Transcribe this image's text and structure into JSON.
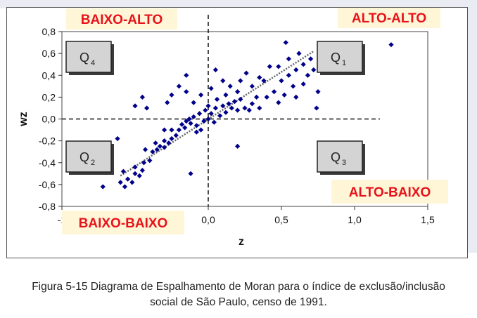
{
  "caption": {
    "line1": "Figura 5-15 Diagrama de Espalhamento de Moran para o índice de exclusão/inclusão",
    "line2": "social de São Paulo, censo de 1991."
  },
  "chart_data": {
    "type": "scatter",
    "xlabel": "z",
    "ylabel": "wz",
    "xlim": [
      -1,
      1.5
    ],
    "ylim": [
      -0.8,
      0.8
    ],
    "x_ticks": [
      "-1",
      "0,0",
      "0,5",
      "1,0",
      "1,5"
    ],
    "x_tick_values": [
      -1.0,
      0.0,
      0.5,
      1.0,
      1.5
    ],
    "y_ticks": [
      "0,8",
      "0,6",
      "0,4",
      "0,2",
      "0,0",
      "-0,2",
      "-0,4",
      "-0,6",
      "-0,8"
    ],
    "y_tick_values": [
      0.8,
      0.6,
      0.4,
      0.2,
      0.0,
      -0.2,
      -0.4,
      -0.6,
      -0.8
    ],
    "grid": false,
    "trendline": {
      "style": "dotted",
      "x": [
        -0.6,
        0.72
      ],
      "y": [
        -0.52,
        0.62
      ]
    },
    "quadrant_labels": [
      {
        "text": "BAIXO-ALTO",
        "color": "#e8121a"
      },
      {
        "text": "ALTO-ALTO",
        "color": "#e8121a"
      },
      {
        "text": "ALTO-BAIXO",
        "color": "#e8121a"
      },
      {
        "text": "BAIXO-BAIXO",
        "color": "#e8121a"
      }
    ],
    "quadrant_boxes": [
      {
        "main": "Q",
        "sub": "4"
      },
      {
        "main": "Q",
        "sub": "1"
      },
      {
        "main": "Q",
        "sub": "2"
      },
      {
        "main": "Q",
        "sub": "3"
      }
    ],
    "marker_color": "#00008b",
    "label_bg": "#fff6d8",
    "points": [
      [
        -0.72,
        -0.62
      ],
      [
        -0.6,
        -0.58
      ],
      [
        -0.57,
        -0.62
      ],
      [
        -0.55,
        -0.55
      ],
      [
        -0.52,
        -0.58
      ],
      [
        -0.5,
        -0.5
      ],
      [
        -0.47,
        -0.52
      ],
      [
        -0.5,
        -0.44
      ],
      [
        -0.58,
        -0.48
      ],
      [
        -0.45,
        -0.47
      ],
      [
        -0.44,
        -0.4
      ],
      [
        -0.4,
        -0.38
      ],
      [
        -0.43,
        -0.28
      ],
      [
        -0.38,
        -0.3
      ],
      [
        -0.35,
        -0.28
      ],
      [
        -0.33,
        -0.25
      ],
      [
        -0.36,
        -0.22
      ],
      [
        -0.3,
        -0.26
      ],
      [
        -0.3,
        -0.2
      ],
      [
        -0.27,
        -0.22
      ],
      [
        -0.25,
        -0.18
      ],
      [
        -0.25,
        -0.1
      ],
      [
        -0.22,
        -0.15
      ],
      [
        -0.2,
        -0.1
      ],
      [
        -0.18,
        -0.05
      ],
      [
        -0.16,
        -0.08
      ],
      [
        -0.15,
        -0.02
      ],
      [
        -0.13,
        0.0
      ],
      [
        -0.12,
        -0.04
      ],
      [
        -0.1,
        0.02
      ],
      [
        -0.08,
        -0.06
      ],
      [
        -0.06,
        0.05
      ],
      [
        -0.05,
        -0.1
      ],
      [
        -0.03,
        -0.02
      ],
      [
        -0.02,
        0.08
      ],
      [
        0.0,
        0.0
      ],
      [
        0.02,
        0.05
      ],
      [
        0.04,
        -0.03
      ],
      [
        0.05,
        0.1
      ],
      [
        0.08,
        0.03
      ],
      [
        0.1,
        0.12
      ],
      [
        0.12,
        0.06
      ],
      [
        0.14,
        0.14
      ],
      [
        0.16,
        0.1
      ],
      [
        0.18,
        0.16
      ],
      [
        0.2,
        0.08
      ],
      [
        0.22,
        0.18
      ],
      [
        0.25,
        0.1
      ],
      [
        -0.42,
        0.1
      ],
      [
        -0.5,
        0.12
      ],
      [
        -0.45,
        0.2
      ],
      [
        -0.25,
        0.22
      ],
      [
        -0.28,
        0.15
      ],
      [
        -0.2,
        0.3
      ],
      [
        -0.15,
        0.25
      ],
      [
        -0.1,
        0.15
      ],
      [
        -0.15,
        0.4
      ],
      [
        -0.05,
        0.22
      ],
      [
        0.02,
        0.28
      ],
      [
        0.05,
        0.45
      ],
      [
        0.1,
        0.35
      ],
      [
        0.12,
        0.22
      ],
      [
        0.15,
        0.3
      ],
      [
        0.2,
        0.25
      ],
      [
        0.22,
        0.35
      ],
      [
        0.26,
        0.42
      ],
      [
        0.3,
        0.3
      ],
      [
        0.33,
        0.2
      ],
      [
        0.3,
        0.14
      ],
      [
        0.28,
        0.08
      ],
      [
        0.35,
        0.1
      ],
      [
        0.38,
        0.35
      ],
      [
        0.4,
        0.2
      ],
      [
        0.42,
        0.48
      ],
      [
        0.45,
        0.25
      ],
      [
        0.48,
        0.15
      ],
      [
        0.5,
        0.35
      ],
      [
        0.52,
        0.22
      ],
      [
        0.55,
        0.55
      ],
      [
        0.58,
        0.3
      ],
      [
        0.6,
        0.45
      ],
      [
        0.62,
        0.6
      ],
      [
        0.65,
        0.5
      ],
      [
        0.68,
        0.4
      ],
      [
        0.7,
        0.55
      ],
      [
        0.72,
        0.45
      ],
      [
        0.75,
        0.25
      ],
      [
        0.78,
        0.5
      ],
      [
        0.6,
        0.2
      ],
      [
        0.55,
        0.4
      ],
      [
        0.65,
        0.32
      ],
      [
        0.74,
        0.1
      ],
      [
        0.53,
        0.7
      ],
      [
        0.48,
        0.48
      ],
      [
        1.05,
        0.45
      ],
      [
        1.25,
        0.68
      ],
      [
        -0.62,
        -0.18
      ],
      [
        -0.3,
        -0.1
      ],
      [
        -0.12,
        -0.5
      ],
      [
        0.2,
        -0.25
      ],
      [
        -0.08,
        -0.12
      ],
      [
        0.0,
        0.12
      ],
      [
        0.06,
        0.18
      ],
      [
        0.35,
        0.38
      ]
    ]
  }
}
